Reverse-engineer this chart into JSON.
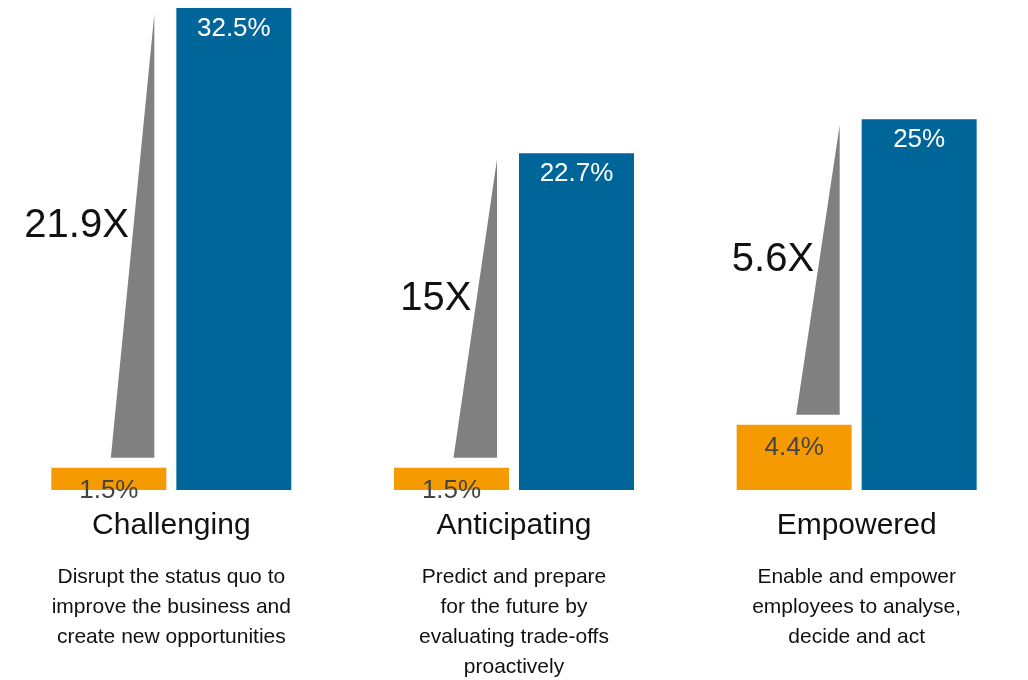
{
  "chart_data": {
    "type": "bar",
    "categories": [
      "Challenging",
      "Anticipating",
      "Empowered"
    ],
    "series": [
      {
        "color": "#f59a00",
        "values": [
          1.5,
          1.5,
          4.4
        ],
        "value_labels": [
          "1.5%",
          "1.5%",
          "4.4%"
        ]
      },
      {
        "color": "#006699",
        "values": [
          32.5,
          22.7,
          25
        ],
        "value_labels": [
          "32.5%",
          "22.7%",
          "25%"
        ]
      }
    ],
    "annotations": [
      "21.9X",
      "15X",
      "5.6X",
      "Disrupt the status quo to\nimprove the business and\ncreate new opportunities",
      "Predict and prepare\nfor the future by\nevaluating trade-offs\nproactively",
      "Enable and empower\nemployees to analyse,\ndecide and act"
    ],
    "grid": false
  }
}
